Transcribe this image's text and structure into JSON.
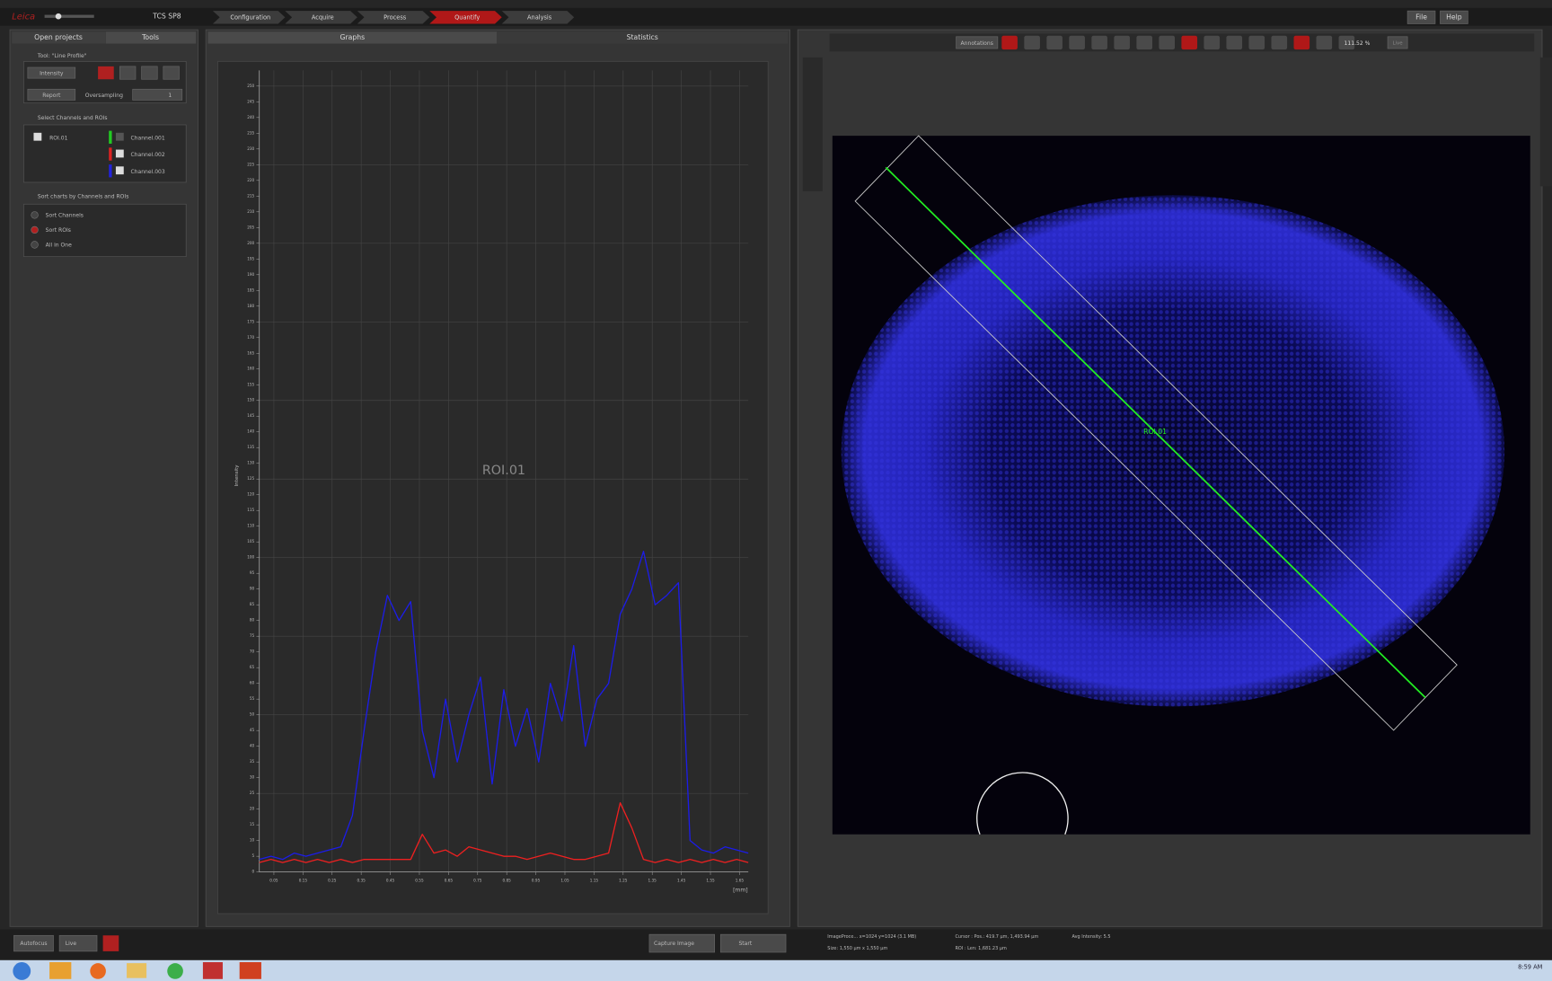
{
  "title_bar": {
    "system": "TCS SP8",
    "tabs": [
      "Configuration",
      "Acquire",
      "Process",
      "Quantify",
      "Analysis"
    ],
    "menu": [
      "File",
      "Help"
    ]
  },
  "left_panel": {
    "tabs": [
      "Open projects",
      "Tools"
    ],
    "tool_header": "Tool: \"Line Profile\"",
    "mode": "Intensity",
    "report": "Report",
    "oversampling_label": "Oversampling",
    "oversampling_value": "1",
    "select_header": "Select Channels and ROIs",
    "rois": [
      "ROI.01"
    ],
    "channels": [
      "Channel.001",
      "Channel.002",
      "Channel.003"
    ],
    "sort_header": "Sort charts by Channels and ROIs",
    "sort_options": [
      "Sort Channels",
      "Sort ROIs",
      "All in One"
    ]
  },
  "graph_panel": {
    "tabs": [
      "Graphs",
      "Statistics"
    ]
  },
  "viewer": {
    "annotations": "Annotations",
    "zoom": "111.52 %",
    "live": "Live",
    "roi_label": "ROI.01"
  },
  "bottom": {
    "autofocus": "Autofocus",
    "live": "Live",
    "capture": "Capture Image",
    "start": "Start",
    "status_1": "ImageProce... x=1024 y=1024 (3.1 MB)",
    "status_2": "Size: 1,550 µm x 1,550 µm",
    "cursor": "Cursor : Pos.: 419.7 µm, 1,493.94 µm",
    "avg": "Avg Intensity: 5.5",
    "roi": "ROI :   Len: 1,681.23 µm",
    "clock": "8:59 AM"
  },
  "chart_data": {
    "type": "line",
    "title": "ROI.01",
    "y_label": "Intensity",
    "x_label": "[mm]",
    "grid": true,
    "x": [
      0,
      0.04,
      0.08,
      0.12,
      0.16,
      0.2,
      0.24,
      0.28,
      0.32,
      0.36,
      0.4,
      0.44,
      0.48,
      0.52,
      0.56,
      0.6,
      0.64,
      0.68,
      0.72,
      0.76,
      0.8,
      0.84,
      0.88,
      0.92,
      0.96,
      1,
      1.04,
      1.08,
      1.12,
      1.16,
      1.2,
      1.24,
      1.28,
      1.32,
      1.36,
      1.4,
      1.44,
      1.48,
      1.52,
      1.56,
      1.6,
      1.64,
      1.68
    ],
    "series": [
      {
        "name": "Channel.003",
        "color": "#1c1ce8",
        "values": [
          4,
          5,
          4,
          6,
          5,
          6,
          7,
          8,
          18,
          45,
          70,
          88,
          80,
          86,
          45,
          30,
          55,
          35,
          50,
          62,
          28,
          58,
          40,
          52,
          35,
          60,
          48,
          72,
          40,
          55,
          60,
          82,
          90,
          102,
          85,
          88,
          92,
          10,
          7,
          6,
          8,
          7,
          6
        ]
      },
      {
        "name": "Channel.002",
        "color": "#ee2020",
        "values": [
          3,
          4,
          3,
          4,
          3,
          4,
          3,
          4,
          3,
          4,
          4,
          4,
          4,
          4,
          12,
          6,
          7,
          5,
          8,
          7,
          6,
          5,
          5,
          4,
          5,
          6,
          5,
          4,
          4,
          5,
          6,
          22,
          14,
          4,
          3,
          4,
          3,
          4,
          3,
          4,
          3,
          4,
          3
        ]
      }
    ],
    "xlim": [
      0,
      1.68
    ],
    "ylim": [
      0,
      255
    ],
    "xticks": [
      0.05,
      0.15,
      0.25,
      0.35,
      0.45,
      0.55,
      0.65,
      0.75,
      0.85,
      0.95,
      1.05,
      1.15,
      1.25,
      1.35,
      1.45,
      1.55,
      1.65
    ],
    "yticks": [
      0,
      5,
      10,
      15,
      20,
      25,
      30,
      35,
      40,
      45,
      50,
      55,
      60,
      65,
      70,
      75,
      80,
      85,
      90,
      95,
      100,
      105,
      110,
      115,
      120,
      125,
      130,
      135,
      140,
      145,
      150,
      155,
      160,
      165,
      170,
      175,
      180,
      185,
      190,
      195,
      200,
      205,
      210,
      215,
      220,
      225,
      230,
      235,
      240,
      245,
      250
    ]
  }
}
